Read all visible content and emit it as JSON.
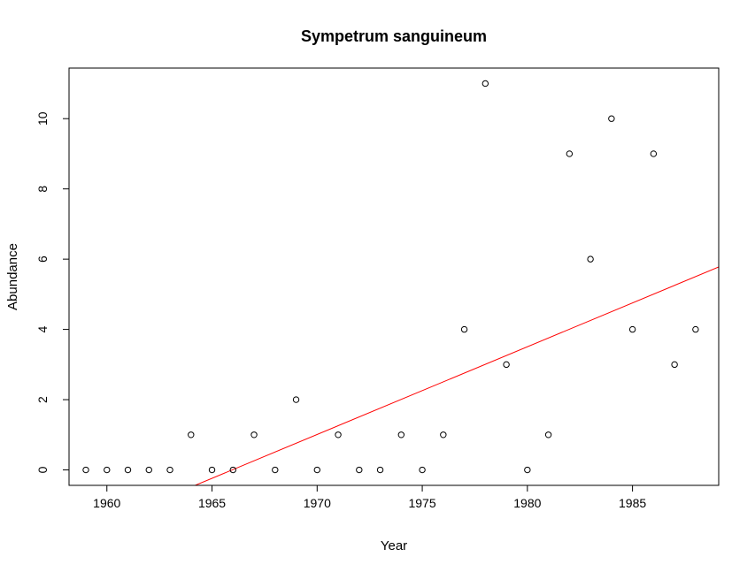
{
  "chart_data": {
    "type": "scatter",
    "title": "Sympetrum sanguineum",
    "xlabel": "Year",
    "ylabel": "Abundance",
    "xlim": [
      1958.2,
      1989.1
    ],
    "ylim": [
      -0.44,
      11.44
    ],
    "x_ticks": [
      1960,
      1965,
      1970,
      1975,
      1980,
      1985
    ],
    "y_ticks": [
      0,
      2,
      4,
      6,
      8,
      10
    ],
    "x_tick_labels": [
      "1960",
      "1965",
      "1970",
      "1975",
      "1980",
      "1985"
    ],
    "y_tick_labels": [
      "0",
      "2",
      "4",
      "6",
      "8",
      "10"
    ],
    "grid": false,
    "marker": "open-circle",
    "point_color": "#000000",
    "points": [
      {
        "x": 1959,
        "y": 0
      },
      {
        "x": 1960,
        "y": 0
      },
      {
        "x": 1961,
        "y": 0
      },
      {
        "x": 1962,
        "y": 0
      },
      {
        "x": 1963,
        "y": 0
      },
      {
        "x": 1964,
        "y": 1
      },
      {
        "x": 1965,
        "y": 0
      },
      {
        "x": 1966,
        "y": 0
      },
      {
        "x": 1967,
        "y": 1
      },
      {
        "x": 1968,
        "y": 0
      },
      {
        "x": 1969,
        "y": 2
      },
      {
        "x": 1970,
        "y": 0
      },
      {
        "x": 1971,
        "y": 1
      },
      {
        "x": 1972,
        "y": 0
      },
      {
        "x": 1973,
        "y": 0
      },
      {
        "x": 1974,
        "y": 1
      },
      {
        "x": 1975,
        "y": 0
      },
      {
        "x": 1976,
        "y": 1
      },
      {
        "x": 1977,
        "y": 4
      },
      {
        "x": 1978,
        "y": 11
      },
      {
        "x": 1979,
        "y": 3
      },
      {
        "x": 1980,
        "y": 0
      },
      {
        "x": 1981,
        "y": 1
      },
      {
        "x": 1982,
        "y": 9
      },
      {
        "x": 1983,
        "y": 6
      },
      {
        "x": 1984,
        "y": 10
      },
      {
        "x": 1985,
        "y": 4
      },
      {
        "x": 1986,
        "y": 9
      },
      {
        "x": 1987,
        "y": 3
      },
      {
        "x": 1988,
        "y": 4
      }
    ],
    "trend_line": {
      "color": "#ff0000",
      "slope": 0.2497,
      "intercept": -490.9
    }
  }
}
